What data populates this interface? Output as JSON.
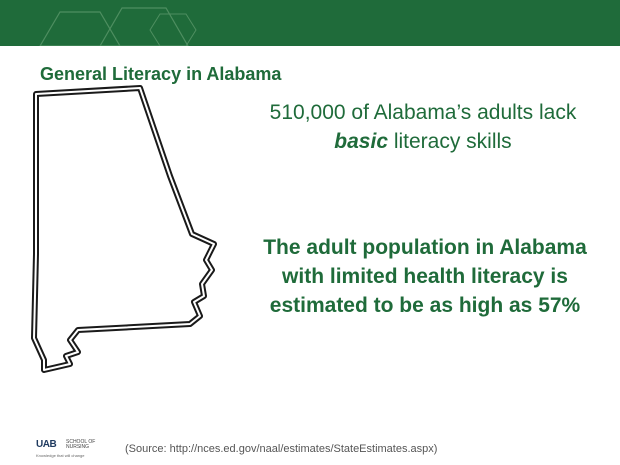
{
  "slide": {
    "title": "General Literacy in Alabama",
    "stat": {
      "before": "510,000 of Alabama’s adults lack ",
      "emphasis": "basic",
      "after": " literacy skills"
    },
    "health_statement": "The adult population in Alabama with limited health literacy is estimated to be as high as  57%",
    "source": "(Source: http://nces.ed.gov/naal/estimates/StateEstimates.aspx)"
  },
  "logo": {
    "mark": "UAB",
    "school_line1": "SCHOOL OF",
    "school_line2": "NURSING",
    "tagline": "Knowledge that will change"
  },
  "colors": {
    "header_green": "#1f6b3a",
    "text_green": "#1f6b3a",
    "map_outline": "#1a1a1a"
  }
}
